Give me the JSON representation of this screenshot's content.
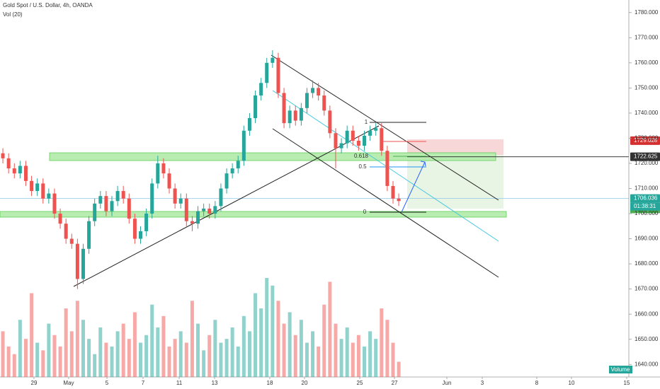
{
  "chart_data": {
    "type": "candlestick",
    "title": "Gold Spot / U.S. Dollar, 4h, OANDA",
    "indicator": "Vol (20)",
    "volume_label": "Volume",
    "countdown": "01:38:31",
    "up_color": "#26a69a",
    "down_color": "#ef5350",
    "grid": false,
    "open": [
      1724,
      1722,
      1718,
      1716,
      1719,
      1713,
      1709,
      1712,
      1706,
      1708,
      1700,
      1696,
      1690,
      1688,
      1674,
      1686,
      1697,
      1704,
      1707,
      1701,
      1705,
      1709,
      1706,
      1698,
      1690,
      1693,
      1700,
      1712,
      1720,
      1716,
      1710,
      1704,
      1706,
      1697,
      1696,
      1701,
      1702,
      1700,
      1703,
      1710,
      1716,
      1718,
      1721,
      1733,
      1738,
      1747,
      1752,
      1760,
      1762,
      1748,
      1736,
      1741,
      1737,
      1742,
      1748,
      1750,
      1747,
      1741,
      1732,
      1726,
      1728,
      1733,
      1729,
      1727,
      1731,
      1733,
      1734,
      1725,
      1711,
      1706
    ],
    "high": [
      1726,
      1724,
      1720,
      1721,
      1721,
      1715,
      1714,
      1714,
      1710,
      1710,
      1702,
      1698,
      1692,
      1690,
      1688,
      1699,
      1706,
      1709,
      1709,
      1707,
      1711,
      1711,
      1708,
      1700,
      1695,
      1702,
      1714,
      1723,
      1722,
      1718,
      1712,
      1708,
      1708,
      1699,
      1703,
      1704,
      1704,
      1705,
      1712,
      1718,
      1720,
      1723,
      1735,
      1740,
      1749,
      1754,
      1762,
      1765,
      1764,
      1750,
      1743,
      1743,
      1744,
      1750,
      1753,
      1752,
      1749,
      1743,
      1734,
      1730,
      1735,
      1735,
      1731,
      1733,
      1735,
      1736,
      1736,
      1727,
      1713,
      1708
    ],
    "low": [
      1720,
      1716,
      1714,
      1714,
      1711,
      1707,
      1707,
      1704,
      1704,
      1698,
      1694,
      1688,
      1686,
      1670,
      1672,
      1684,
      1695,
      1702,
      1699,
      1699,
      1703,
      1704,
      1696,
      1688,
      1688,
      1691,
      1698,
      1710,
      1714,
      1708,
      1702,
      1702,
      1695,
      1693,
      1694,
      1699,
      1698,
      1698,
      1701,
      1708,
      1714,
      1716,
      1719,
      1731,
      1736,
      1745,
      1750,
      1758,
      1746,
      1734,
      1734,
      1735,
      1735,
      1740,
      1746,
      1745,
      1739,
      1730,
      1718,
      1724,
      1726,
      1727,
      1725,
      1725,
      1729,
      1731,
      1723,
      1709,
      1704,
      1703
    ],
    "close": [
      1722,
      1718,
      1716,
      1719,
      1713,
      1709,
      1712,
      1706,
      1708,
      1700,
      1696,
      1690,
      1688,
      1674,
      1686,
      1697,
      1704,
      1707,
      1701,
      1705,
      1709,
      1706,
      1698,
      1690,
      1693,
      1700,
      1712,
      1720,
      1716,
      1710,
      1704,
      1706,
      1697,
      1696,
      1701,
      1702,
      1700,
      1703,
      1710,
      1716,
      1718,
      1721,
      1733,
      1738,
      1747,
      1752,
      1760,
      1762,
      1748,
      1736,
      1741,
      1737,
      1742,
      1748,
      1750,
      1747,
      1741,
      1732,
      1726,
      1728,
      1733,
      1729,
      1727,
      1731,
      1733,
      1734,
      1725,
      1711,
      1706,
      1705
    ],
    "volume": [
      12,
      8,
      6,
      15,
      10,
      22,
      9,
      7,
      14,
      11,
      8,
      18,
      12,
      20,
      15,
      10,
      6,
      13,
      9,
      8,
      12,
      14,
      10,
      17,
      9,
      11,
      19,
      13,
      16,
      8,
      10,
      12,
      9,
      20,
      14,
      7,
      11,
      15,
      9,
      10,
      13,
      8,
      16,
      12,
      22,
      18,
      26,
      24,
      20,
      14,
      17,
      11,
      15,
      9,
      12,
      8,
      19,
      25,
      14,
      10,
      13,
      9,
      11,
      8,
      12,
      10,
      18,
      15,
      9,
      4
    ],
    "xlim": [
      -0.5,
      109.1
    ],
    "xticks": [
      {
        "value": 5.42,
        "label": "29"
      },
      {
        "value": 11.47,
        "label": "May"
      },
      {
        "value": 18.14,
        "label": "5"
      },
      {
        "value": 24.43,
        "label": "7"
      },
      {
        "value": 30.73,
        "label": "11"
      },
      {
        "value": 36.9,
        "label": "13"
      },
      {
        "value": 46.52,
        "label": "18"
      },
      {
        "value": 52.57,
        "label": "20"
      },
      {
        "value": 62.2,
        "label": "25"
      },
      {
        "value": 68.25,
        "label": "27"
      },
      {
        "value": 77.38,
        "label": "Jun"
      },
      {
        "value": 83.55,
        "label": "3"
      },
      {
        "value": 93.05,
        "label": "8"
      },
      {
        "value": 99.1,
        "label": "10"
      },
      {
        "value": 108.73,
        "label": "15"
      }
    ],
    "ylim": [
      1635,
      1785
    ],
    "yticks": [
      {
        "value": 1640,
        "label": "1640.000"
      },
      {
        "value": 1650,
        "label": "1650.000"
      },
      {
        "value": 1660,
        "label": "1660.000"
      },
      {
        "value": 1670,
        "label": "1670.000"
      },
      {
        "value": 1680,
        "label": "1680.000"
      },
      {
        "value": 1690,
        "label": "1690.000"
      },
      {
        "value": 1700,
        "label": "1700.000"
      },
      {
        "value": 1710,
        "label": "1710.000"
      },
      {
        "value": 1720,
        "label": "1720.000"
      },
      {
        "value": 1730,
        "label": "1730.000"
      },
      {
        "value": 1740,
        "label": "1740.000"
      },
      {
        "value": 1750,
        "label": "1750.000"
      },
      {
        "value": 1760,
        "label": "1760.000"
      },
      {
        "value": 1770,
        "label": "1770.000"
      },
      {
        "value": 1780,
        "label": "1780.000"
      }
    ],
    "price_tags": [
      {
        "value": 1729.028,
        "color": "#d32f2f"
      },
      {
        "value": 1722.625,
        "color": "#333333"
      },
      {
        "value": 1706.036,
        "color": "#26a69a"
      },
      {
        "value": 1701.856,
        "color": "#4caf50"
      }
    ],
    "fib_levels": [
      1,
      0.618,
      0.5,
      0
    ]
  }
}
